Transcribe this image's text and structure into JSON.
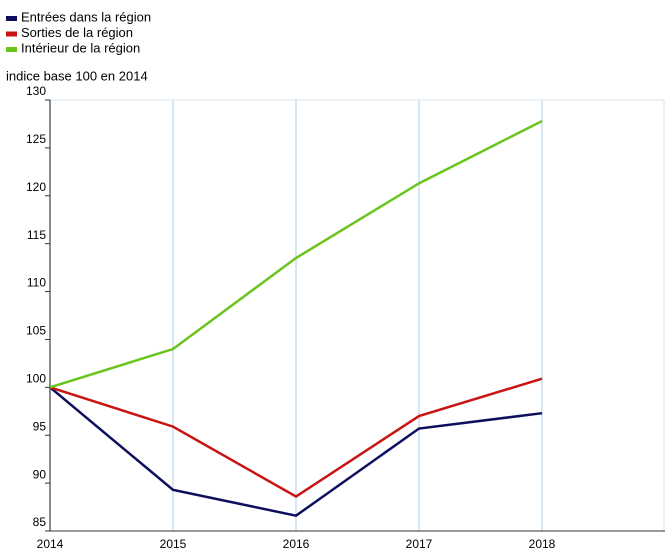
{
  "chart_data": {
    "type": "line",
    "y_axis_label": "indice base 100 en 2014",
    "x": [
      2014,
      2015,
      2016,
      2017,
      2018
    ],
    "series": [
      {
        "name": "Entrées dans la région",
        "color": "#0d0f5c",
        "values": [
          100,
          89.3,
          86.6,
          95.7,
          97.3
        ]
      },
      {
        "name": "Sorties de la région",
        "color": "#c81414",
        "values": [
          100,
          95.9,
          88.6,
          97.0,
          100.9
        ]
      },
      {
        "name": "Intérieur de la région",
        "color": "#6ac41c",
        "values": [
          100,
          104.0,
          113.5,
          121.3,
          127.8
        ]
      }
    ],
    "xlim": [
      2014,
      2019
    ],
    "xticks": [
      2014,
      2015,
      2016,
      2017,
      2018
    ],
    "ylim": [
      85,
      130
    ],
    "yticks": [
      85,
      90,
      95,
      100,
      105,
      110,
      115,
      120,
      125,
      130
    ],
    "grid": true,
    "legend": "top-left"
  }
}
